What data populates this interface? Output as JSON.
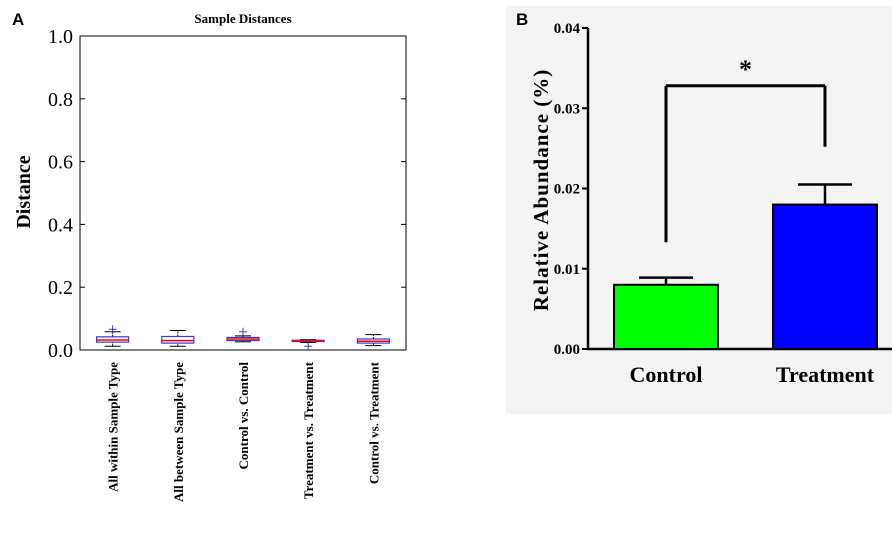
{
  "panels": {
    "a_label": "A",
    "b_label": "B"
  },
  "chart_data": [
    {
      "type": "box",
      "title": "Sample Distances",
      "xlabel": "",
      "ylabel": "Distance",
      "ylim": [
        0.0,
        1.0
      ],
      "yticks": [
        "0.0",
        "0.2",
        "0.4",
        "0.6",
        "0.8",
        "1.0"
      ],
      "ytick_values": [
        0.0,
        0.2,
        0.4,
        0.6,
        0.8,
        1.0
      ],
      "categories": [
        "All within  Sample Type",
        "All between  Sample Type",
        "Control vs. Control",
        "Treatment vs. Treatment",
        "Control vs. Treatment"
      ],
      "boxes": [
        {
          "whisker_low": 0.012,
          "q1": 0.025,
          "median": 0.032,
          "q3": 0.042,
          "whisker_high": 0.058,
          "outliers": [
            0.066
          ]
        },
        {
          "whisker_low": 0.012,
          "q1": 0.022,
          "median": 0.03,
          "q3": 0.043,
          "whisker_high": 0.062,
          "outliers": []
        },
        {
          "whisker_low": 0.026,
          "q1": 0.03,
          "median": 0.035,
          "q3": 0.04,
          "whisker_high": 0.045,
          "outliers": [
            0.058
          ]
        },
        {
          "whisker_low": 0.024,
          "q1": 0.027,
          "median": 0.029,
          "q3": 0.031,
          "whisker_high": 0.033,
          "outliers": [
            0.012
          ]
        },
        {
          "whisker_low": 0.014,
          "q1": 0.022,
          "median": 0.028,
          "q3": 0.035,
          "whisker_high": 0.049,
          "outliers": []
        }
      ],
      "colors": {
        "box": "#3a3acc",
        "median": "#ff0000",
        "outlier": "#3a3acc",
        "whisker": "#000000"
      }
    },
    {
      "type": "bar",
      "title": "",
      "xlabel": "",
      "ylabel": "Relative Abundance (%)",
      "ylim": [
        0.0,
        0.04
      ],
      "yticks": [
        "0.00",
        "0.01",
        "0.02",
        "0.03",
        "0.04"
      ],
      "ytick_values": [
        0.0,
        0.01,
        0.02,
        0.03,
        0.04
      ],
      "categories": [
        "Control",
        "Treatment"
      ],
      "values": [
        0.008,
        0.018
      ],
      "errors": [
        0.0009,
        0.0025
      ],
      "colors": [
        "#00ff00",
        "#0000ff"
      ],
      "significance": {
        "label": "*",
        "line_level": 0.0328,
        "left_drop": 0.0133,
        "right_drop": 0.0252
      }
    }
  ]
}
